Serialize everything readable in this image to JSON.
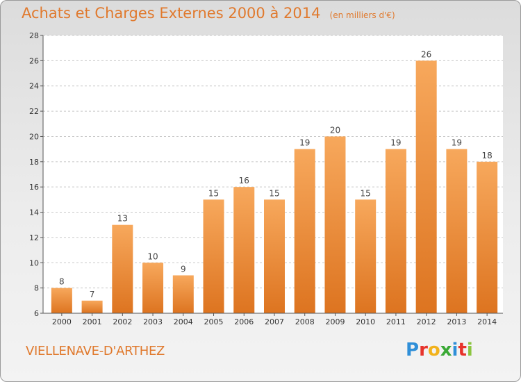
{
  "title": "Achats et Charges Externes 2000 à 2014",
  "unit": "(en milliers d'€)",
  "place": "VIELLENAVE-D'ARTHEZ",
  "logo": {
    "letters": [
      "P",
      "r",
      "o",
      "x",
      "i",
      "t",
      "i"
    ],
    "colors": [
      "#2f8fd8",
      "#e7332b",
      "#f2b21b",
      "#3aa935",
      "#2f8fd8",
      "#e7332b",
      "#8bc53f"
    ]
  },
  "colors": {
    "bar_top": "#f7a85c",
    "bar_bottom": "#dd7420",
    "title": "#e0792d"
  },
  "chart_data": {
    "type": "bar",
    "categories": [
      "2000",
      "2001",
      "2002",
      "2003",
      "2004",
      "2005",
      "2006",
      "2007",
      "2008",
      "2009",
      "2010",
      "2011",
      "2012",
      "2013",
      "2014"
    ],
    "values": [
      8,
      7,
      13,
      10,
      9,
      15,
      16,
      15,
      19,
      20,
      15,
      19,
      26,
      19,
      18
    ],
    "data_labels": [
      "8",
      "7",
      "13",
      "10",
      "9",
      "15",
      "16",
      "15",
      "19",
      "20",
      "15",
      "19",
      "26",
      "19",
      "18"
    ],
    "ylim": [
      6,
      28
    ],
    "yticks": [
      "6",
      "8",
      "10",
      "12",
      "14",
      "16",
      "18",
      "20",
      "22",
      "24",
      "26",
      "28"
    ],
    "grid": "horizontal dashed",
    "legend": "none"
  }
}
